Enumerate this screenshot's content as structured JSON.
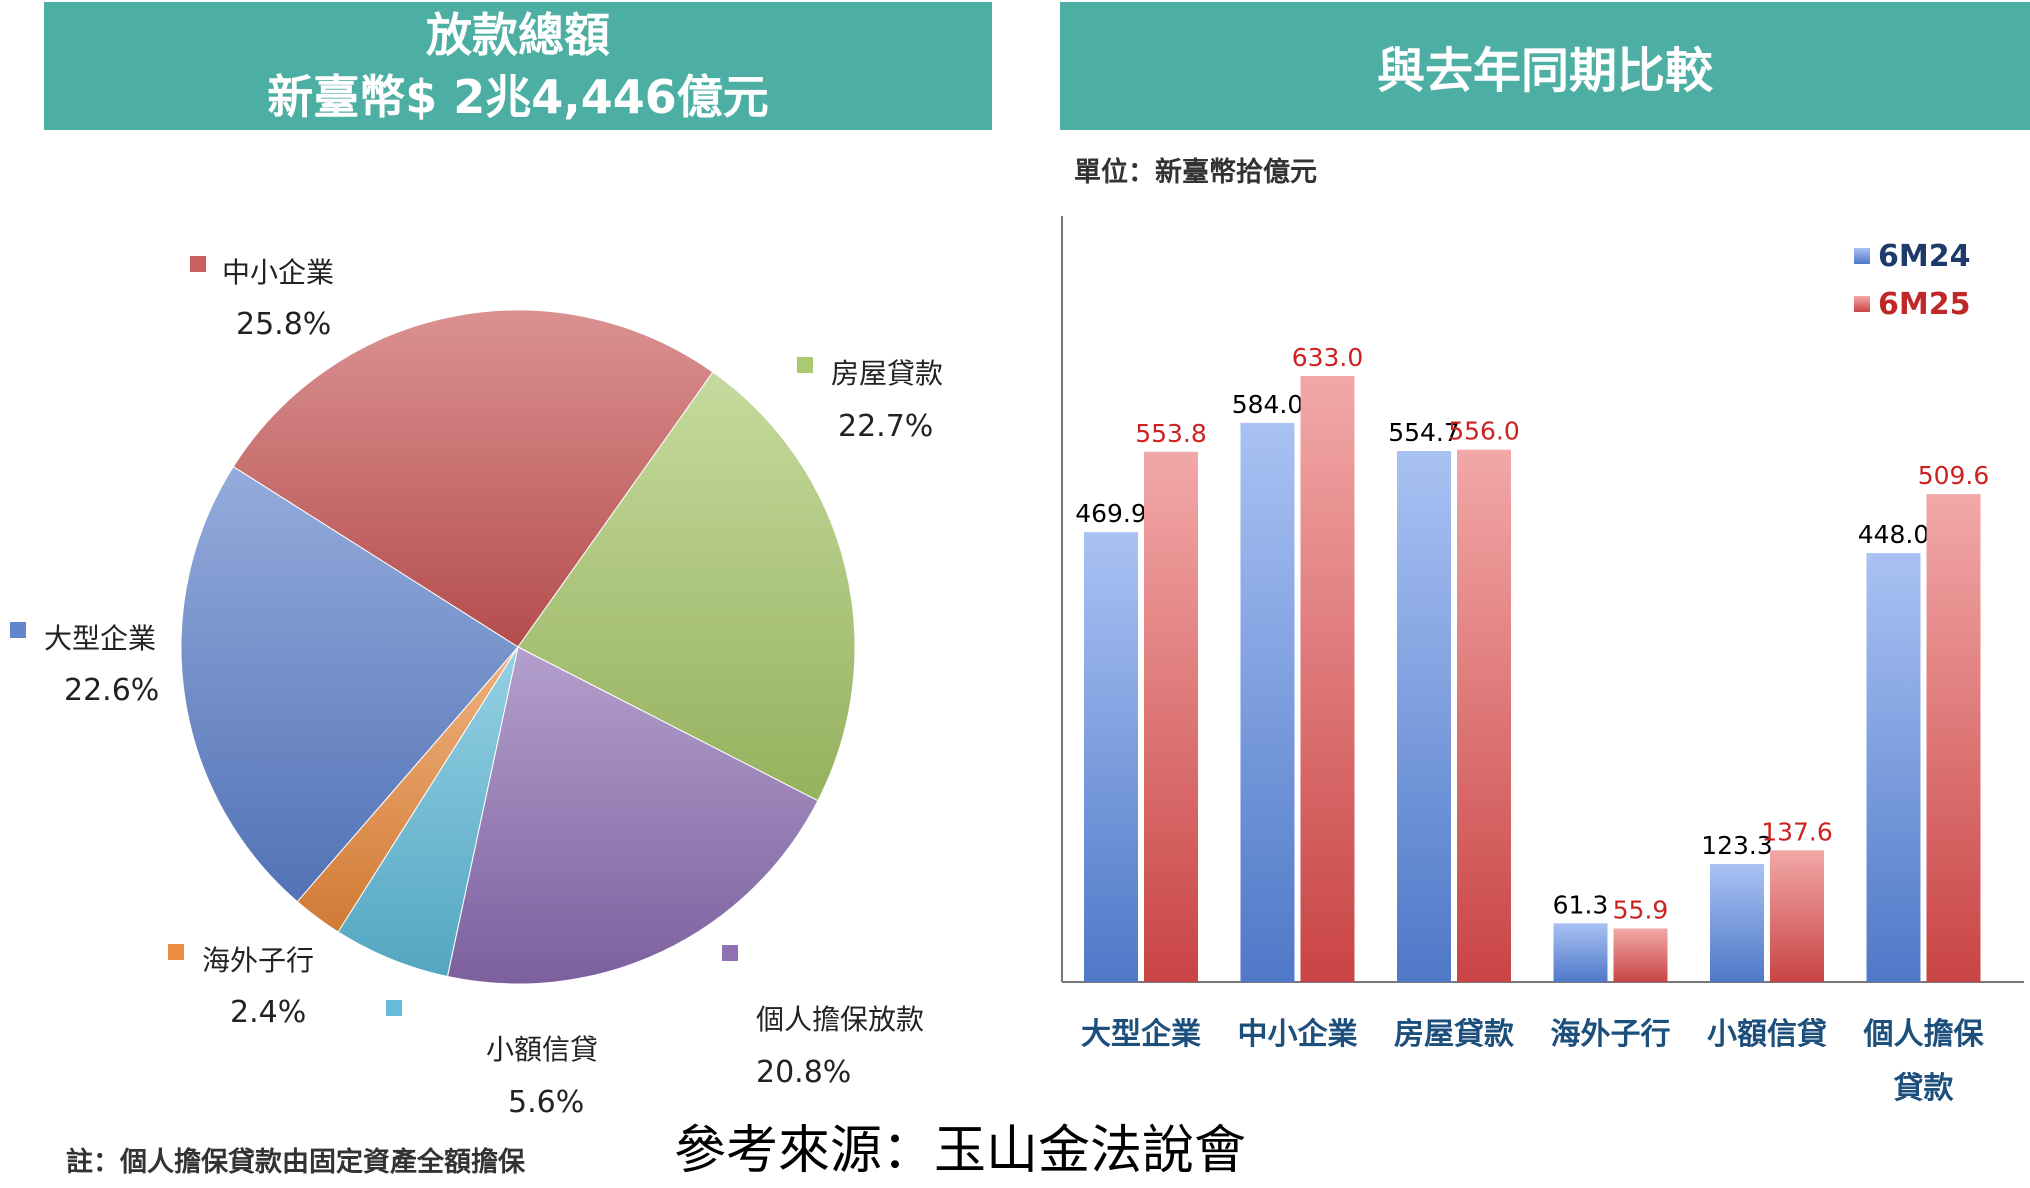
{
  "left_panel": {
    "title_line1": "放款總額",
    "title_line2": "新臺幣$ 2兆4,446億元"
  },
  "right_panel": {
    "title": "與去年同期比較",
    "unit": "單位：新臺幣拾億元"
  },
  "note": "註：個人擔保貸款由固定資產全額擔保",
  "source": "參考來源：玉山金法說會",
  "colors": {
    "banner": "#4daea3",
    "series_6M24": "#5b86d4",
    "series_6M25": "#d55a5a"
  },
  "chart_data": [
    {
      "type": "pie",
      "title": "放款總額",
      "slices": [
        {
          "label": "中小企業",
          "value": 25.8,
          "pct_label": "25.8%",
          "color": "#c85555"
        },
        {
          "label": "房屋貸款",
          "value": 22.7,
          "pct_label": "22.7%",
          "color": "#a6c668"
        },
        {
          "label": "個人擔保放款",
          "value": 20.8,
          "pct_label": "20.8%",
          "color": "#8a6bb0"
        },
        {
          "label": "小額信貸",
          "value": 5.6,
          "pct_label": "5.6%",
          "color": "#5cb8d6"
        },
        {
          "label": "海外子行",
          "value": 2.4,
          "pct_label": "2.4%",
          "color": "#e8883a"
        },
        {
          "label": "大型企業",
          "value": 22.6,
          "pct_label": "22.6%",
          "color": "#5b7fc9"
        }
      ]
    },
    {
      "type": "bar",
      "title": "與去年同期比較",
      "ylabel": "單位：新臺幣拾億元",
      "ylim": [
        0,
        700
      ],
      "legend_position": "top-right",
      "categories": [
        [
          "大型企業"
        ],
        [
          "中小企業"
        ],
        [
          "房屋貸款"
        ],
        [
          "海外子行"
        ],
        [
          "小額信貸"
        ],
        [
          "個人擔保",
          "貸款"
        ]
      ],
      "series": [
        {
          "name": "6M24",
          "values": [
            469.9,
            584.0,
            554.7,
            61.3,
            123.3,
            448.0
          ],
          "labels": [
            "469.9",
            "584.0",
            "554.7",
            "61.3",
            "123.3",
            "448.0"
          ]
        },
        {
          "name": "6M25",
          "values": [
            553.8,
            633.0,
            556.0,
            55.9,
            137.6,
            509.6
          ],
          "labels": [
            "553.8",
            "633.0",
            "556.0",
            "55.9",
            "137.6",
            "509.6"
          ]
        }
      ]
    }
  ]
}
